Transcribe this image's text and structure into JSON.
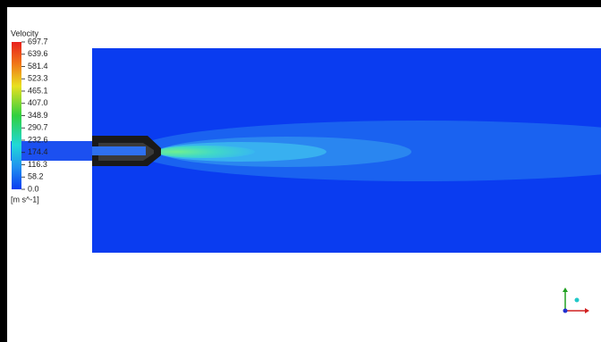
{
  "legend": {
    "title": "Velocity",
    "labels": [
      "697.7",
      "639.6",
      "581.4",
      "523.3",
      "465.1",
      "407.0",
      "348.9",
      "290.7",
      "232.6",
      "174.4",
      "116.3",
      "58.2",
      "0.0"
    ],
    "unit": "[m s^-1]"
  }
}
